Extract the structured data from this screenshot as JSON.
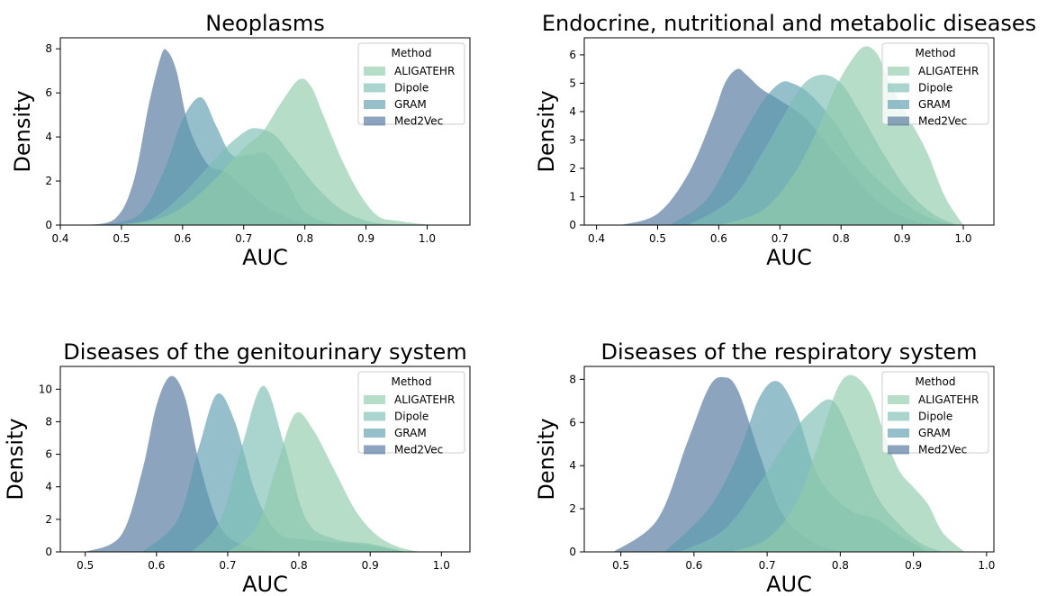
{
  "chart_data": [
    {
      "type": "area",
      "title": "Neoplasms",
      "xlabel": "AUC",
      "ylabel": "Density",
      "xlim": [
        0.4,
        1.07
      ],
      "ylim": [
        0,
        8.5
      ],
      "xticks": [
        0.4,
        0.5,
        0.6,
        0.7,
        0.8,
        0.9,
        1.0
      ],
      "xtick_labels": [
        "0.4",
        "0.5",
        "0.6",
        "0.7",
        "0.8",
        "0.9",
        "1.0"
      ],
      "yticks": [
        0,
        2,
        4,
        6,
        8
      ],
      "ytick_labels": [
        "0",
        "2",
        "4",
        "6",
        "8"
      ],
      "grid": false,
      "legend": {
        "title": "Method",
        "position": "top-right",
        "entries": [
          "ALIGATEHR",
          "Dipole",
          "GRAM",
          "Med2Vec"
        ]
      },
      "series": [
        {
          "name": "ALIGATEHR",
          "color": "#8fcbaa",
          "x": [
            0.48,
            0.55,
            0.6,
            0.65,
            0.7,
            0.73,
            0.76,
            0.79,
            0.81,
            0.83,
            0.86,
            0.89,
            0.92,
            0.95,
            0.99,
            1.01
          ],
          "y": [
            0,
            0.2,
            0.8,
            2.0,
            3.5,
            4.2,
            5.5,
            6.6,
            6.3,
            5.0,
            3.0,
            1.4,
            0.4,
            0.2,
            0.05,
            0
          ]
        },
        {
          "name": "Dipole",
          "color": "#7dbfb5",
          "x": [
            0.49,
            0.55,
            0.6,
            0.64,
            0.67,
            0.7,
            0.72,
            0.75,
            0.78,
            0.82,
            0.86,
            0.9,
            0.95
          ],
          "y": [
            0,
            0.3,
            1.4,
            2.6,
            3.5,
            4.2,
            4.4,
            4.1,
            3.1,
            1.7,
            0.7,
            0.2,
            0
          ]
        },
        {
          "name": "GRAM",
          "color": "#5c9caf",
          "x": [
            0.47,
            0.53,
            0.57,
            0.6,
            0.63,
            0.655,
            0.68,
            0.71,
            0.74,
            0.77,
            0.8,
            0.85
          ],
          "y": [
            0,
            0.5,
            2.5,
            4.8,
            5.8,
            4.5,
            3.2,
            3.2,
            3.2,
            2.0,
            0.6,
            0
          ]
        },
        {
          "name": "Med2Vec",
          "color": "#4f7399",
          "x": [
            0.44,
            0.49,
            0.52,
            0.545,
            0.565,
            0.575,
            0.59,
            0.61,
            0.64,
            0.67,
            0.7,
            0.74,
            0.79,
            0.85
          ],
          "y": [
            0,
            0.3,
            2.0,
            5.5,
            7.7,
            7.9,
            7.0,
            4.5,
            2.8,
            2.4,
            1.7,
            0.8,
            0.15,
            0
          ]
        }
      ]
    },
    {
      "type": "area",
      "title": "Endocrine, nutritional and metabolic diseases",
      "xlabel": "AUC",
      "ylabel": "Density",
      "xlim": [
        0.38,
        1.05
      ],
      "ylim": [
        0,
        6.6
      ],
      "xticks": [
        0.4,
        0.5,
        0.6,
        0.7,
        0.8,
        0.9,
        1.0
      ],
      "xtick_labels": [
        "0.4",
        "0.5",
        "0.6",
        "0.7",
        "0.8",
        "0.9",
        "1.0"
      ],
      "yticks": [
        0,
        1,
        2,
        3,
        4,
        5,
        6
      ],
      "ytick_labels": [
        "0",
        "1",
        "2",
        "3",
        "4",
        "5",
        "6"
      ],
      "grid": false,
      "legend": {
        "title": "Method",
        "position": "top-right",
        "entries": [
          "ALIGATEHR",
          "Dipole",
          "GRAM",
          "Med2Vec"
        ]
      },
      "series": [
        {
          "name": "ALIGATEHR",
          "color": "#8fcbaa",
          "x": [
            0.6,
            0.67,
            0.72,
            0.76,
            0.79,
            0.82,
            0.84,
            0.86,
            0.88,
            0.91,
            0.94,
            0.97,
            1.0
          ],
          "y": [
            0,
            0.5,
            1.7,
            3.3,
            4.8,
            5.9,
            6.3,
            6.0,
            5.0,
            3.8,
            2.6,
            1.0,
            0
          ]
        },
        {
          "name": "Dipole",
          "color": "#7dbfb5",
          "x": [
            0.55,
            0.62,
            0.67,
            0.71,
            0.74,
            0.77,
            0.8,
            0.83,
            0.87,
            0.91,
            0.95,
            0.99
          ],
          "y": [
            0,
            0.9,
            2.5,
            4.0,
            5.0,
            5.3,
            5.0,
            4.0,
            2.5,
            1.2,
            0.4,
            0
          ]
        },
        {
          "name": "GRAM",
          "color": "#5c9caf",
          "x": [
            0.52,
            0.58,
            0.63,
            0.67,
            0.7,
            0.72,
            0.75,
            0.79,
            0.83,
            0.88,
            0.93,
            0.98
          ],
          "y": [
            0,
            0.9,
            2.8,
            4.3,
            5.0,
            5.0,
            4.6,
            3.6,
            2.3,
            1.2,
            0.4,
            0
          ]
        },
        {
          "name": "Med2Vec",
          "color": "#4f7399",
          "x": [
            0.44,
            0.5,
            0.55,
            0.59,
            0.61,
            0.63,
            0.645,
            0.67,
            0.7,
            0.74,
            0.78,
            0.83,
            0.88,
            0.94
          ],
          "y": [
            0,
            0.4,
            1.8,
            3.8,
            5.0,
            5.5,
            5.3,
            4.8,
            4.4,
            3.8,
            2.8,
            1.5,
            0.5,
            0
          ]
        }
      ]
    },
    {
      "type": "area",
      "title": "Diseases of the genitourinary system",
      "xlabel": "AUC",
      "ylabel": "Density",
      "xlim": [
        0.465,
        1.04
      ],
      "ylim": [
        0,
        11.4
      ],
      "xticks": [
        0.5,
        0.6,
        0.7,
        0.8,
        0.9,
        1.0
      ],
      "xtick_labels": [
        "0.5",
        "0.6",
        "0.7",
        "0.8",
        "0.9",
        "1.0"
      ],
      "yticks": [
        0,
        2,
        4,
        6,
        8,
        10
      ],
      "ytick_labels": [
        "0",
        "2",
        "4",
        "6",
        "8",
        "10"
      ],
      "grid": false,
      "legend": {
        "title": "Method",
        "position": "top-right",
        "entries": [
          "ALIGATEHR",
          "Dipole",
          "GRAM",
          "Med2Vec"
        ]
      },
      "series": [
        {
          "name": "ALIGATEHR",
          "color": "#8fcbaa",
          "x": [
            0.7,
            0.74,
            0.77,
            0.795,
            0.82,
            0.85,
            0.88,
            0.91,
            0.94,
            0.97
          ],
          "y": [
            0,
            1.5,
            5.5,
            8.5,
            7.5,
            5.0,
            2.5,
            1.0,
            0.3,
            0
          ]
        },
        {
          "name": "Dipole",
          "color": "#7dbfb5",
          "x": [
            0.65,
            0.69,
            0.72,
            0.75,
            0.78,
            0.81,
            0.85,
            0.9,
            0.95
          ],
          "y": [
            0,
            2.0,
            6.5,
            10.2,
            6.5,
            2.0,
            0.8,
            0.5,
            0
          ]
        },
        {
          "name": "GRAM",
          "color": "#5c9caf",
          "x": [
            0.58,
            0.63,
            0.66,
            0.685,
            0.71,
            0.74,
            0.77,
            0.8,
            0.85,
            0.9,
            0.95
          ],
          "y": [
            0,
            2.0,
            6.5,
            9.7,
            8.0,
            3.5,
            1.2,
            0.8,
            0.6,
            0.4,
            0
          ]
        },
        {
          "name": "Med2Vec",
          "color": "#4f7399",
          "x": [
            0.5,
            0.55,
            0.58,
            0.6,
            0.62,
            0.64,
            0.66,
            0.69,
            0.73,
            0.78
          ],
          "y": [
            0,
            1.0,
            5.0,
            9.0,
            10.8,
            9.5,
            5.5,
            1.5,
            0.3,
            0
          ]
        }
      ]
    },
    {
      "type": "area",
      "title": "Diseases of the respiratory system",
      "xlabel": "AUC",
      "ylabel": "Density",
      "xlim": [
        0.45,
        1.01
      ],
      "ylim": [
        0,
        8.6
      ],
      "xticks": [
        0.5,
        0.6,
        0.7,
        0.8,
        0.9,
        1.0
      ],
      "xtick_labels": [
        "0.5",
        "0.6",
        "0.7",
        "0.8",
        "0.9",
        "1.0"
      ],
      "yticks": [
        0,
        2,
        4,
        6,
        8
      ],
      "ytick_labels": [
        "0",
        "2",
        "4",
        "6",
        "8"
      ],
      "grid": false,
      "legend": {
        "title": "Method",
        "position": "top-right",
        "entries": [
          "ALIGATEHR",
          "Dipole",
          "GRAM",
          "Med2Vec"
        ]
      },
      "series": [
        {
          "name": "ALIGATEHR",
          "color": "#8fcbaa",
          "x": [
            0.65,
            0.7,
            0.74,
            0.77,
            0.795,
            0.815,
            0.84,
            0.86,
            0.88,
            0.9,
            0.92,
            0.94,
            0.97
          ],
          "y": [
            0,
            0.6,
            2.3,
            5.0,
            7.5,
            8.2,
            7.4,
            5.5,
            3.8,
            3.0,
            2.2,
            0.9,
            0
          ]
        },
        {
          "name": "Dipole",
          "color": "#7dbfb5",
          "x": [
            0.58,
            0.64,
            0.69,
            0.73,
            0.76,
            0.79,
            0.82,
            0.85,
            0.88,
            0.91,
            0.94
          ],
          "y": [
            0,
            1.0,
            3.2,
            5.3,
            6.5,
            7.0,
            5.0,
            2.6,
            1.3,
            0.4,
            0
          ]
        },
        {
          "name": "GRAM",
          "color": "#5c9caf",
          "x": [
            0.56,
            0.62,
            0.66,
            0.69,
            0.715,
            0.74,
            0.77,
            0.81,
            0.85,
            0.88,
            0.92
          ],
          "y": [
            0,
            2.0,
            4.5,
            7.2,
            7.9,
            6.5,
            3.5,
            2.0,
            1.5,
            0.8,
            0
          ]
        },
        {
          "name": "Med2Vec",
          "color": "#4f7399",
          "x": [
            0.49,
            0.55,
            0.59,
            0.62,
            0.64,
            0.66,
            0.69,
            0.72,
            0.76,
            0.8
          ],
          "y": [
            0,
            1.5,
            5.0,
            7.6,
            8.1,
            7.5,
            4.5,
            1.8,
            0.5,
            0
          ]
        }
      ]
    }
  ]
}
